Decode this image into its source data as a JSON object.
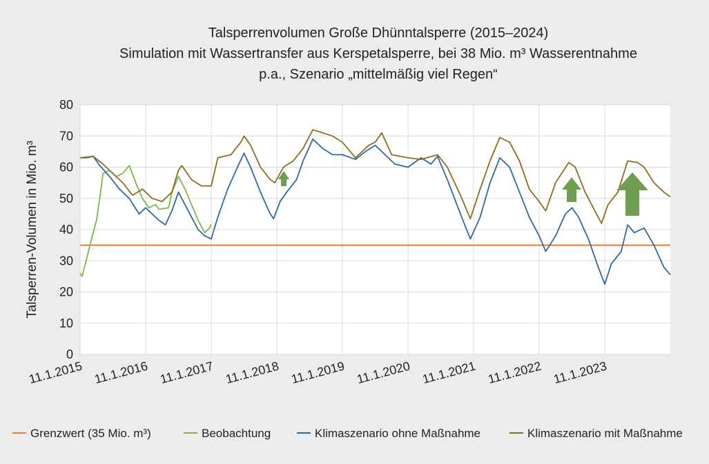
{
  "chart_data": {
    "type": "line",
    "title": [
      "Talsperrenvolumen Große Dhünntalsperre (2015–2024)",
      "Simulation mit Wassertransfer aus Kerspetalsperre, bei 38 Mio. m³ Wasserentnahme",
      "p.a., Szenario „mittelmäßig viel Regen“"
    ],
    "ylabel": "Talsperren-Volumen in Mio. m³",
    "xlim": [
      2015,
      2024
    ],
    "xticks": [
      {
        "value": 2015,
        "label": "11.1.2015"
      },
      {
        "value": 2016,
        "label": "11.1.2016"
      },
      {
        "value": 2017,
        "label": "11.1.2017"
      },
      {
        "value": 2018,
        "label": "11.1.2018"
      },
      {
        "value": 2019,
        "label": "11.1.2019"
      },
      {
        "value": 2020,
        "label": "11.1.2020"
      },
      {
        "value": 2021,
        "label": "11.1.2021"
      },
      {
        "value": 2022,
        "label": "11.1.2022"
      },
      {
        "value": 2023,
        "label": "11.1.2023"
      }
    ],
    "ylim": [
      0,
      80
    ],
    "yticks": [
      0,
      10,
      20,
      30,
      40,
      50,
      60,
      70,
      80
    ],
    "grid": true,
    "legend": "bottom",
    "series": [
      {
        "name": "Grenzwert (35 Mio. m³)",
        "color": "#ec7a2c",
        "x": [
          2015,
          2024
        ],
        "values": [
          35,
          35
        ]
      },
      {
        "name": "Beobachtung",
        "color": "#78b74a",
        "x": [
          2015.0,
          2015.03,
          2015.08,
          2015.15,
          2015.25,
          2015.3,
          2015.35,
          2015.45,
          2015.55,
          2015.65,
          2015.75,
          2015.85,
          2015.95,
          2016.05,
          2016.15,
          2016.2,
          2016.35,
          2016.4,
          2016.5,
          2016.6,
          2016.7,
          2016.8,
          2016.9,
          2016.95,
          2017.0
        ],
        "values": [
          26,
          25,
          29,
          35,
          43,
          50,
          58,
          59,
          57,
          58,
          60.5,
          55,
          50,
          47,
          48,
          46.5,
          47,
          52,
          57,
          53,
          48,
          43,
          39,
          40,
          41.5
        ]
      },
      {
        "name": "Klimaszenario ohne Maßnahme",
        "color": "#2f67a0",
        "x": [
          2015.0,
          2015.1,
          2015.2,
          2015.3,
          2015.45,
          2015.6,
          2015.75,
          2015.9,
          2016.0,
          2016.1,
          2016.2,
          2016.3,
          2016.4,
          2016.5,
          2016.6,
          2016.7,
          2016.8,
          2016.9,
          2017.0,
          2017.1,
          2017.25,
          2017.4,
          2017.5,
          2017.6,
          2017.75,
          2017.9,
          2017.95,
          2018.05,
          2018.15,
          2018.3,
          2018.4,
          2018.55,
          2018.7,
          2018.85,
          2019.0,
          2019.2,
          2019.35,
          2019.5,
          2019.65,
          2019.8,
          2020.0,
          2020.2,
          2020.35,
          2020.45,
          2020.6,
          2020.8,
          2020.95,
          2021.1,
          2021.25,
          2021.4,
          2021.55,
          2021.7,
          2021.85,
          2022.0,
          2022.1,
          2022.25,
          2022.4,
          2022.5,
          2022.6,
          2022.75,
          2022.9,
          2023.0,
          2023.1,
          2023.25,
          2023.35,
          2023.45,
          2023.6,
          2023.75,
          2023.9,
          2024.0
        ],
        "values": [
          63,
          63,
          63.5,
          60.5,
          57,
          53,
          50,
          45,
          47,
          45,
          43,
          41.5,
          46,
          52,
          48,
          44,
          40,
          38,
          37,
          44,
          53,
          60,
          64.5,
          60,
          52,
          45,
          43.5,
          49,
          52,
          56,
          62,
          69,
          66,
          64,
          64,
          62.5,
          65,
          67,
          64,
          61,
          60,
          63,
          61,
          63.5,
          56,
          45,
          37,
          44,
          55,
          63,
          60,
          52,
          44,
          38,
          33,
          38,
          45,
          47,
          44,
          37,
          28,
          22.5,
          29,
          33,
          41.5,
          39,
          40.5,
          35,
          28,
          25.5
        ]
      },
      {
        "name": "Klimaszenario mit Maßnahme",
        "color": "#8a6d1e",
        "x": [
          2015.0,
          2015.2,
          2015.35,
          2015.5,
          2015.65,
          2015.8,
          2015.95,
          2016.1,
          2016.25,
          2016.4,
          2016.5,
          2016.55,
          2016.7,
          2016.85,
          2017.0,
          2017.1,
          2017.3,
          2017.45,
          2017.5,
          2017.6,
          2017.75,
          2017.9,
          2017.97,
          2018.1,
          2018.25,
          2018.4,
          2018.55,
          2018.7,
          2018.85,
          2019.0,
          2019.2,
          2019.4,
          2019.5,
          2019.6,
          2019.75,
          2020.0,
          2020.2,
          2020.45,
          2020.6,
          2020.8,
          2020.95,
          2021.1,
          2021.25,
          2021.4,
          2021.55,
          2021.7,
          2021.85,
          2022.0,
          2022.1,
          2022.25,
          2022.45,
          2022.55,
          2022.7,
          2022.85,
          2022.95,
          2023.05,
          2023.2,
          2023.35,
          2023.5,
          2023.6,
          2023.75,
          2023.9,
          2024.0
        ],
        "values": [
          63,
          63.5,
          61,
          58,
          55,
          51,
          53,
          50,
          49,
          52,
          59,
          60.5,
          56,
          54,
          54,
          63,
          64,
          68,
          70,
          67,
          60,
          56,
          55,
          60,
          62,
          66,
          72,
          71,
          70,
          68,
          63,
          67,
          68,
          71,
          64,
          63,
          62.5,
          64,
          60,
          51,
          43.5,
          53,
          62,
          69.5,
          68,
          62,
          53,
          49,
          46,
          55,
          61.5,
          60,
          52,
          46,
          42,
          48,
          52,
          62,
          61.5,
          60,
          55,
          52,
          50.5
        ]
      }
    ]
  }
}
